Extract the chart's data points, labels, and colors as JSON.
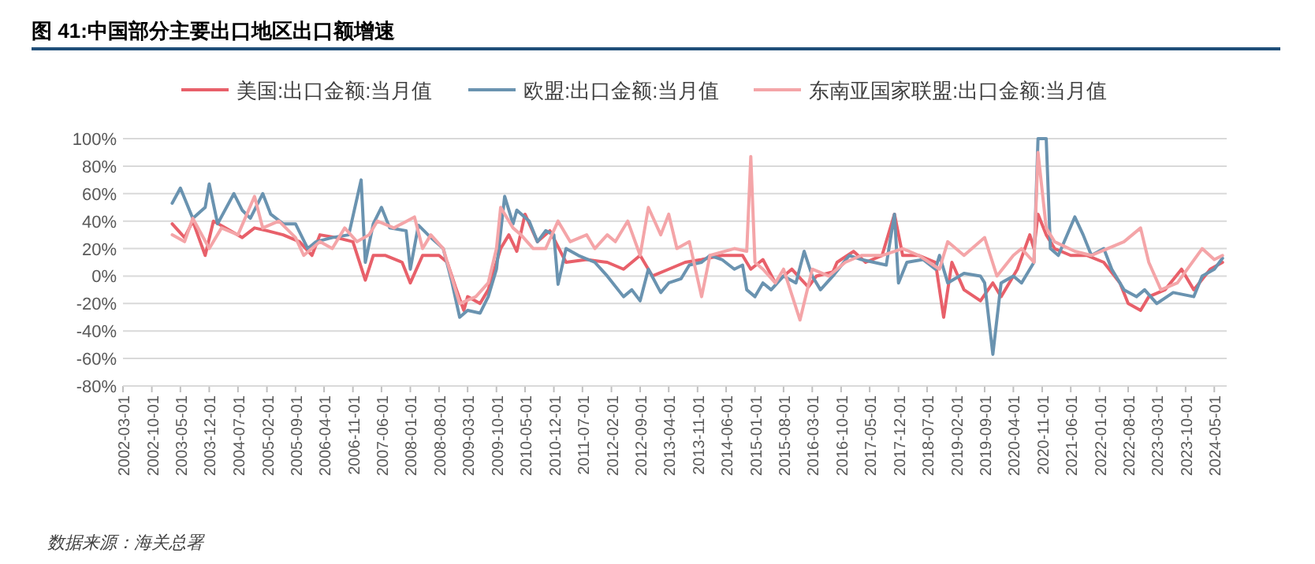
{
  "chart_data": {
    "type": "line",
    "title": "图 41:中国部分主要出口地区出口额增速",
    "legend": "top",
    "grid": "y",
    "marker": "none",
    "line_style": "solid",
    "xlim": [
      "2002-03-01",
      "2024-08-01"
    ],
    "xticks": [
      "2002-03-01",
      "2002-10-01",
      "2003-05-01",
      "2003-12-01",
      "2004-07-01",
      "2005-02-01",
      "2005-09-01",
      "2006-04-01",
      "2006-11-01",
      "2007-06-01",
      "2008-01-01",
      "2008-08-01",
      "2009-03-01",
      "2009-10-01",
      "2010-05-01",
      "2010-12-01",
      "2011-07-01",
      "2012-02-01",
      "2012-09-01",
      "2013-04-01",
      "2013-11-01",
      "2014-06-01",
      "2015-01-01",
      "2015-08-01",
      "2016-03-01",
      "2016-10-01",
      "2017-05-01",
      "2017-12-01",
      "2018-07-01",
      "2019-02-01",
      "2019-09-01",
      "2020-04-01",
      "2020-11-01",
      "2021-06-01",
      "2022-01-01",
      "2022-08-01",
      "2023-03-01",
      "2023-10-01",
      "2024-05-01"
    ],
    "ylim": [
      -80,
      100
    ],
    "yticks": [
      {
        "value": -80,
        "label": "-80%"
      },
      {
        "value": -60,
        "label": "-60%"
      },
      {
        "value": -40,
        "label": "-40%"
      },
      {
        "value": -20,
        "label": "-20%"
      },
      {
        "value": 0,
        "label": "0%"
      },
      {
        "value": 20,
        "label": "20%"
      },
      {
        "value": 40,
        "label": "40%"
      },
      {
        "value": 60,
        "label": "60%"
      },
      {
        "value": 80,
        "label": "80%"
      },
      {
        "value": 100,
        "label": "100%"
      }
    ],
    "annotations": [
      "数据来源：海关总署"
    ],
    "series": [
      {
        "name": "美国:出口金额:当月值",
        "color": "#e8606a",
        "x": [
          "2003-03",
          "2003-06",
          "2003-08",
          "2003-11",
          "2004-01",
          "2004-04",
          "2004-08",
          "2004-11",
          "2005-02",
          "2005-06",
          "2005-10",
          "2006-01",
          "2006-03",
          "2006-07",
          "2006-11",
          "2007-02",
          "2007-04",
          "2007-07",
          "2007-11",
          "2008-01",
          "2008-04",
          "2008-08",
          "2008-10",
          "2008-12",
          "2009-02",
          "2009-03",
          "2009-06",
          "2009-08",
          "2009-11",
          "2010-01",
          "2010-03",
          "2010-05",
          "2010-08",
          "2010-11",
          "2011-03",
          "2011-08",
          "2012-01",
          "2012-05",
          "2012-09",
          "2012-12",
          "2013-04",
          "2013-08",
          "2013-12",
          "2014-05",
          "2014-10",
          "2014-12",
          "2015-03",
          "2015-06",
          "2015-10",
          "2016-02",
          "2016-04",
          "2016-08",
          "2016-09",
          "2017-01",
          "2017-04",
          "2017-08",
          "2017-11",
          "2018-01",
          "2018-05",
          "2018-09",
          "2018-11",
          "2019-01",
          "2019-04",
          "2019-08",
          "2019-11",
          "2020-01",
          "2020-05",
          "2020-08",
          "2020-09",
          "2020-10",
          "2020-12",
          "2021-02",
          "2021-06",
          "2021-10",
          "2022-02",
          "2022-06",
          "2022-08",
          "2022-11",
          "2023-01",
          "2023-05",
          "2023-09",
          "2023-12",
          "2024-04",
          "2024-07"
        ],
        "values": [
          38,
          28,
          40,
          15,
          40,
          35,
          28,
          35,
          33,
          30,
          25,
          15,
          30,
          28,
          25,
          -3,
          15,
          15,
          10,
          -5,
          15,
          15,
          10,
          -8,
          -25,
          -15,
          -20,
          -10,
          20,
          30,
          18,
          45,
          25,
          33,
          10,
          12,
          10,
          5,
          15,
          0,
          5,
          10,
          12,
          15,
          15,
          5,
          12,
          -5,
          5,
          -8,
          0,
          3,
          10,
          18,
          10,
          15,
          45,
          15,
          15,
          10,
          -30,
          10,
          -10,
          -18,
          -5,
          -15,
          5,
          30,
          20,
          45,
          30,
          20,
          15,
          15,
          10,
          -5,
          -20,
          -25,
          -15,
          -10,
          5,
          -10,
          5,
          10
        ]
      },
      {
        "name": "欧盟:出口金额:当月值",
        "color": "#6a93b0",
        "x": [
          "2003-03",
          "2003-05",
          "2003-08",
          "2003-11",
          "2003-12",
          "2004-02",
          "2004-06",
          "2004-08",
          "2004-10",
          "2005-01",
          "2005-03",
          "2005-06",
          "2005-09",
          "2005-12",
          "2006-02",
          "2006-06",
          "2006-10",
          "2007-01",
          "2007-02",
          "2007-04",
          "2007-06",
          "2007-08",
          "2007-12",
          "2008-01",
          "2008-03",
          "2008-06",
          "2008-09",
          "2008-11",
          "2009-01",
          "2009-03",
          "2009-06",
          "2009-08",
          "2009-10",
          "2009-12",
          "2010-02",
          "2010-03",
          "2010-06",
          "2010-08",
          "2010-10",
          "2010-12",
          "2011-01",
          "2011-03",
          "2011-06",
          "2011-10",
          "2012-01",
          "2012-05",
          "2012-07",
          "2012-09",
          "2012-11",
          "2013-02",
          "2013-04",
          "2013-07",
          "2013-09",
          "2013-12",
          "2014-02",
          "2014-05",
          "2014-08",
          "2014-10",
          "2014-11",
          "2015-01",
          "2015-03",
          "2015-05",
          "2015-08",
          "2015-11",
          "2016-01",
          "2016-03",
          "2016-05",
          "2016-08",
          "2016-12",
          "2017-03",
          "2017-06",
          "2017-09",
          "2017-11",
          "2017-12",
          "2018-02",
          "2018-06",
          "2018-09",
          "2018-10",
          "2018-12",
          "2019-04",
          "2019-08",
          "2019-09",
          "2019-11",
          "2020-01",
          "2020-04",
          "2020-06",
          "2020-09",
          "2020-10",
          "2020-12",
          "2021-01",
          "2021-03",
          "2021-07",
          "2021-09",
          "2021-11",
          "2022-02",
          "2022-04",
          "2022-07",
          "2022-10",
          "2022-12",
          "2023-03",
          "2023-07",
          "2023-12",
          "2024-02",
          "2024-05",
          "2024-07"
        ],
        "values": [
          53,
          64,
          42,
          50,
          67,
          38,
          60,
          48,
          42,
          60,
          45,
          38,
          38,
          20,
          25,
          28,
          30,
          70,
          10,
          38,
          50,
          35,
          33,
          5,
          37,
          28,
          20,
          -3,
          -30,
          -25,
          -27,
          -15,
          5,
          58,
          38,
          48,
          40,
          25,
          33,
          30,
          -6,
          20,
          15,
          10,
          0,
          -15,
          -10,
          -18,
          5,
          -12,
          -5,
          -2,
          8,
          10,
          15,
          12,
          5,
          8,
          -10,
          -15,
          -5,
          -10,
          0,
          -5,
          18,
          0,
          -10,
          0,
          15,
          12,
          10,
          8,
          45,
          -5,
          10,
          12,
          5,
          15,
          -5,
          2,
          0,
          -5,
          -57,
          -5,
          0,
          -5,
          10,
          100,
          100,
          20,
          15,
          43,
          30,
          15,
          20,
          5,
          -10,
          -15,
          -10,
          -20,
          -12,
          -15,
          0,
          5,
          13
        ]
      },
      {
        "name": "东南亚国家联盟:出口金额:当月值",
        "color": "#f4a5a8",
        "x": [
          "2003-03",
          "2003-06",
          "2003-08",
          "2003-12",
          "2004-03",
          "2004-07",
          "2004-11",
          "2005-01",
          "2005-05",
          "2005-09",
          "2005-11",
          "2006-03",
          "2006-06",
          "2006-09",
          "2006-12",
          "2007-03",
          "2007-05",
          "2007-09",
          "2008-02",
          "2008-04",
          "2008-06",
          "2008-09",
          "2009-01",
          "2009-05",
          "2009-08",
          "2009-10",
          "2009-11",
          "2010-02",
          "2010-04",
          "2010-07",
          "2010-10",
          "2011-01",
          "2011-04",
          "2011-08",
          "2011-10",
          "2012-01",
          "2012-03",
          "2012-06",
          "2012-09",
          "2012-11",
          "2013-02",
          "2013-04",
          "2013-06",
          "2013-09",
          "2013-12",
          "2014-02",
          "2014-08",
          "2014-11",
          "2014-12",
          "2015-01",
          "2015-03",
          "2015-06",
          "2015-08",
          "2015-12",
          "2016-03",
          "2016-07",
          "2016-11",
          "2017-03",
          "2017-08",
          "2018-01",
          "2018-05",
          "2018-10",
          "2018-12",
          "2019-04",
          "2019-09",
          "2019-12",
          "2020-04",
          "2020-06",
          "2020-09",
          "2020-10",
          "2020-12",
          "2021-02",
          "2021-07",
          "2021-11",
          "2022-03",
          "2022-07",
          "2022-11",
          "2023-01",
          "2023-04",
          "2023-08",
          "2024-02",
          "2024-05",
          "2024-07"
        ],
        "values": [
          30,
          25,
          42,
          20,
          35,
          30,
          58,
          35,
          40,
          28,
          15,
          25,
          20,
          35,
          25,
          30,
          40,
          35,
          43,
          20,
          30,
          20,
          -20,
          -15,
          -5,
          20,
          50,
          35,
          30,
          20,
          20,
          40,
          25,
          30,
          20,
          30,
          25,
          40,
          15,
          50,
          30,
          45,
          20,
          25,
          -15,
          15,
          20,
          18,
          87,
          10,
          5,
          -5,
          5,
          -32,
          5,
          0,
          10,
          15,
          15,
          20,
          15,
          5,
          25,
          15,
          28,
          0,
          15,
          20,
          10,
          90,
          35,
          25,
          18,
          15,
          20,
          25,
          35,
          10,
          -10,
          -5,
          20,
          12,
          15
        ]
      }
    ]
  }
}
